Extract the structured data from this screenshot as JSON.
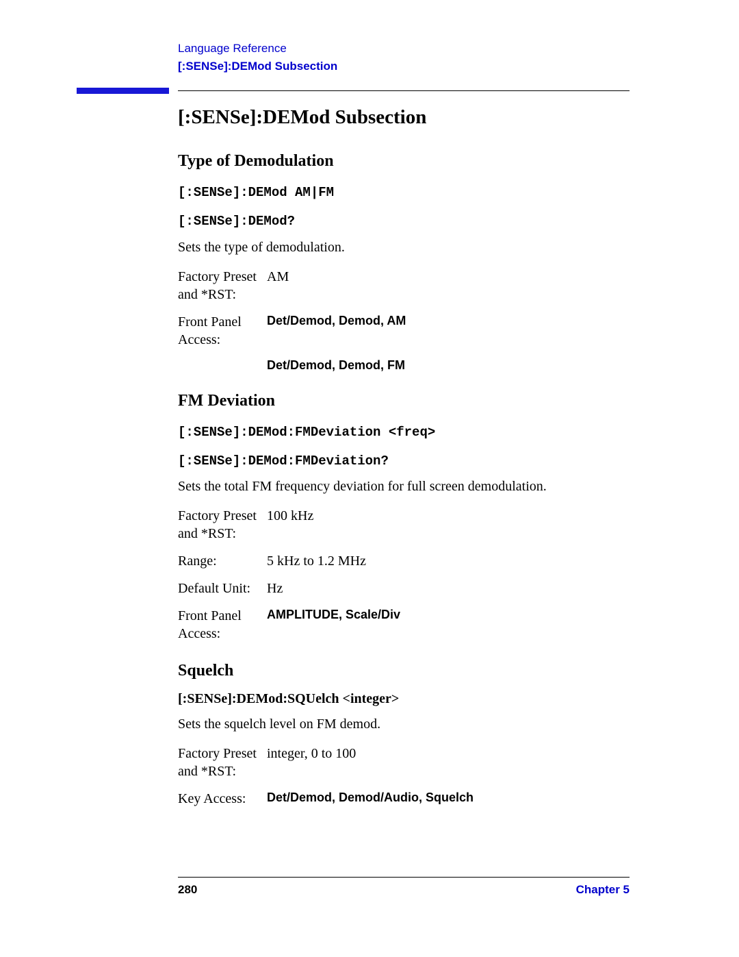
{
  "header": {
    "line1": "Language Reference",
    "line2": "[:SENSe]:DEMod Subsection"
  },
  "section_title": "[:SENSe]:DEMod Subsection",
  "sections": [
    {
      "title": "Type of Demodulation",
      "commands": [
        "[:SENSe]:DEMod AM|FM",
        "[:SENSe]:DEMod?"
      ],
      "description": "Sets the type of demodulation.",
      "rows": [
        {
          "label": "Factory Preset and *RST:",
          "value": "AM",
          "bold": false
        },
        {
          "label": "Front Panel Access:",
          "value": "Det/Demod, Demod, AM",
          "bold": true,
          "second": "Det/Demod, Demod, FM"
        }
      ]
    },
    {
      "title": "FM Deviation",
      "commands": [
        "[:SENSe]:DEMod:FMDeviation <freq>",
        "[:SENSe]:DEMod:FMDeviation?"
      ],
      "description": "Sets the total FM frequency deviation for full screen demodulation.",
      "rows": [
        {
          "label": "Factory Preset and *RST:",
          "value": "100 kHz",
          "bold": false
        },
        {
          "label": "Range:",
          "value": "5 kHz to 1.2 MHz",
          "bold": false
        },
        {
          "label": "Default Unit:",
          "value": "Hz",
          "bold": false
        },
        {
          "label": "Front Panel Access:",
          "value": "AMPLITUDE, Scale/Div",
          "bold": true
        }
      ]
    },
    {
      "title": "Squelch",
      "serif_command": "[:SENSe]:DEMod:SQUelch <integer>",
      "description": "Sets the squelch level on FM demod.",
      "rows": [
        {
          "label": "Factory Preset and *RST:",
          "value": "integer, 0 to 100",
          "bold": false
        },
        {
          "label": "Key Access:",
          "value": "Det/Demod, Demod/Audio, Squelch",
          "bold": true
        }
      ]
    }
  ],
  "footer": {
    "page": "280",
    "chapter": "Chapter 5"
  },
  "colors": {
    "link": "#0000cc",
    "bar": "#1818d6",
    "text": "#000000",
    "background": "#ffffff"
  }
}
